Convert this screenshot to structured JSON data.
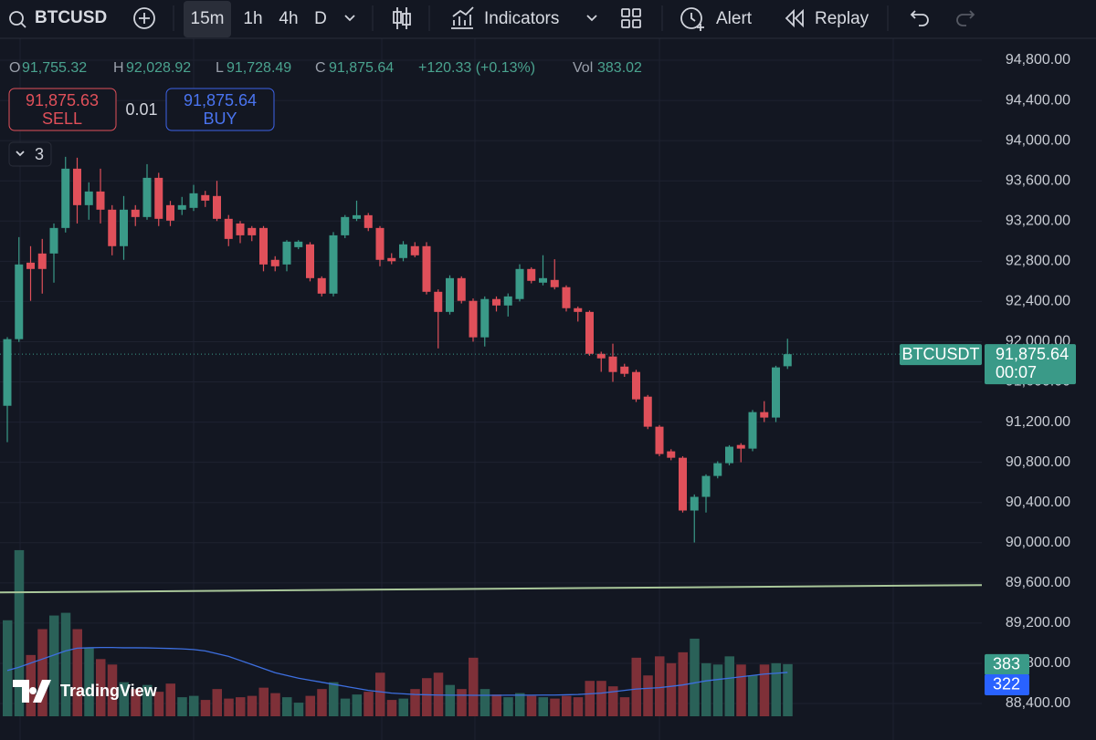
{
  "toolbar": {
    "symbol": "BTCUSD",
    "intervals": [
      "15m",
      "1h",
      "4h",
      "D"
    ],
    "indicators": "Indicators",
    "alert": "Alert",
    "replay": "Replay"
  },
  "legend": {
    "open_prefix": "O",
    "open": "91,755.32",
    "high_prefix": "H",
    "high": "92,028.92",
    "low_prefix": "L",
    "low": "91,728.49",
    "close_prefix": "C",
    "close": "91,875.64",
    "change": "+120.33 (+0.13%)",
    "volume_prefix": "Vol",
    "volume": "383.02"
  },
  "trade": {
    "sell_price": "91,875.63",
    "sell": "SELL",
    "size": "0.01",
    "buy_price": "91,875.64",
    "buy": "BUY"
  },
  "badge": "3",
  "watermark": "TradingView",
  "chart_data": {
    "type": "candlestick",
    "up_color": "#3a9a88",
    "down_color": "#e0505a",
    "volume_up_color": "#2a6158",
    "volume_down_color": "#7e3038",
    "ma_color": "#3d6fe0",
    "ylim": [
      88400,
      94800
    ],
    "yticks": [
      {
        "value": 94800,
        "label": "94,800.00"
      },
      {
        "value": 94400,
        "label": "94,400.00"
      },
      {
        "value": 94000,
        "label": "94,000.00"
      },
      {
        "value": 93600,
        "label": "93,600.00"
      },
      {
        "value": 93200,
        "label": "93,200.00"
      },
      {
        "value": 92800,
        "label": "92,800.00"
      },
      {
        "value": 92400,
        "label": "92,400.00"
      },
      {
        "value": 92000,
        "label": "92,000.00"
      },
      {
        "value": 91600,
        "label": "91,600.00"
      },
      {
        "value": 91200,
        "label": "91,200.00"
      },
      {
        "value": 90800,
        "label": "90,800.00"
      },
      {
        "value": 90400,
        "label": "90,400.00"
      },
      {
        "value": 90000,
        "label": "90,000.00"
      },
      {
        "value": 89600,
        "label": "89,600.00"
      },
      {
        "value": 89200,
        "label": "89,200.00"
      },
      {
        "value": 88800,
        "label": "88,800.00"
      },
      {
        "value": 88400,
        "label": "88,400.00"
      }
    ],
    "grid": true,
    "open": [
      91362,
      92025,
      92786,
      92877,
      92877,
      93131,
      93721,
      93358,
      93494,
      93313,
      92950,
      93313,
      93240,
      93630,
      93358,
      93313,
      93331,
      93458,
      93449,
      93222,
      93176,
      93131,
      93131,
      92814,
      92768,
      92940,
      92968,
      92632,
      92478,
      93058,
      93222,
      93258,
      93131,
      92832,
      92832,
      92950,
      92950,
      92496,
      92296,
      92632,
      92406,
      92043,
      92424,
      92360,
      92424,
      92723,
      92587,
      92614,
      92542,
      92333,
      92296,
      91879,
      91852,
      91752,
      91698,
      91453,
      91154,
      90909,
      90845,
      90320,
      90456,
      90664,
      90791,
      90972,
      90936,
      91299,
      91245,
      91755.32
    ],
    "high": [
      92045,
      93040,
      92950,
      93022,
      93176,
      93839,
      93830,
      93585,
      93721,
      93358,
      93449,
      93358,
      93766,
      93680,
      93400,
      93440,
      93560,
      93500,
      93600,
      93260,
      93200,
      93150,
      93150,
      92850,
      93010,
      93010,
      92990,
      92650,
      93090,
      93260,
      93403,
      93280,
      93150,
      92880,
      93000,
      92990,
      92990,
      92520,
      92660,
      92650,
      92430,
      92450,
      92450,
      92480,
      92770,
      92740,
      92860,
      92820,
      92560,
      92350,
      92310,
      91900,
      91980,
      91780,
      91720,
      91470,
      91170,
      90930,
      90860,
      90480,
      90680,
      90810,
      90970,
      90990,
      91320,
      91408,
      91760,
      92028.92
    ],
    "low": [
      91000,
      91997,
      92406,
      92478,
      92587,
      93086,
      93176,
      93213,
      93176,
      92859,
      92814,
      93150,
      93213,
      93150,
      93150,
      93260,
      93300,
      93340,
      93200,
      92950,
      92980,
      93000,
      92700,
      92700,
      92700,
      92920,
      92600,
      92450,
      92450,
      93030,
      93200,
      93100,
      92750,
      92770,
      92800,
      92840,
      92470,
      91933,
      92270,
      92380,
      92000,
      91952,
      92300,
      92250,
      92400,
      92580,
      92560,
      92520,
      92300,
      92200,
      91860,
      91700,
      91600,
      91650,
      91400,
      91130,
      90860,
      90820,
      90300,
      90002,
      90300,
      90640,
      90770,
      90800,
      90910,
      91200,
      91200,
      91728.49
    ],
    "close": [
      92025,
      92768,
      92723,
      92723,
      93131,
      93721,
      93358,
      93494,
      93313,
      92950,
      93313,
      93240,
      93630,
      93222,
      93204,
      93358,
      93476,
      93403,
      93222,
      93022,
      93058,
      93058,
      92768,
      92750,
      92995,
      92995,
      92632,
      92478,
      93058,
      93240,
      93258,
      93131,
      92814,
      92800,
      92968,
      92859,
      92496,
      92296,
      92632,
      92406,
      92043,
      92424,
      92360,
      92450,
      92723,
      92605,
      92632,
      92542,
      92333,
      92296,
      91879,
      91834,
      91698,
      91680,
      91426,
      91154,
      90882,
      90845,
      90320,
      90456,
      90664,
      90791,
      90955,
      90936,
      91299,
      91245,
      91744,
      91875.64
    ],
    "volume_ylim": [
      0,
      1300
    ],
    "volume": [
      705,
      1220,
      450,
      640,
      740,
      760,
      640,
      500,
      420,
      380,
      250,
      200,
      230,
      180,
      240,
      140,
      150,
      120,
      200,
      130,
      140,
      150,
      210,
      170,
      140,
      100,
      150,
      200,
      250,
      130,
      160,
      180,
      320,
      120,
      130,
      200,
      280,
      320,
      230,
      200,
      430,
      200,
      160,
      140,
      170,
      150,
      140,
      130,
      150,
      140,
      260,
      260,
      220,
      140,
      430,
      300,
      440,
      390,
      470,
      570,
      390,
      380,
      440,
      380,
      300,
      380,
      390,
      383.02
    ],
    "volume_ma": [
      336,
      360,
      390,
      420,
      450,
      480,
      500,
      503,
      505,
      505,
      503,
      503,
      502,
      500,
      498,
      495,
      490,
      480,
      460,
      440,
      410,
      380,
      350,
      320,
      300,
      280,
      265,
      250,
      235,
      220,
      205,
      190,
      180,
      170,
      165,
      160,
      158,
      156,
      155,
      155,
      154,
      154,
      154,
      155,
      155,
      155,
      156,
      156,
      158,
      160,
      165,
      170,
      180,
      190,
      200,
      205,
      210,
      220,
      230,
      245,
      260,
      270,
      280,
      290,
      300,
      310,
      316,
      322
    ],
    "volume_last_label": "383",
    "volume_ma_last_label": "322",
    "price_line": {
      "value": 91875.64,
      "label": "91,875.64",
      "symbol": "BTCUSDT",
      "countdown": "00:07"
    },
    "trend_line": [
      89505,
      89578
    ],
    "trend_color": "#a9c79a"
  }
}
